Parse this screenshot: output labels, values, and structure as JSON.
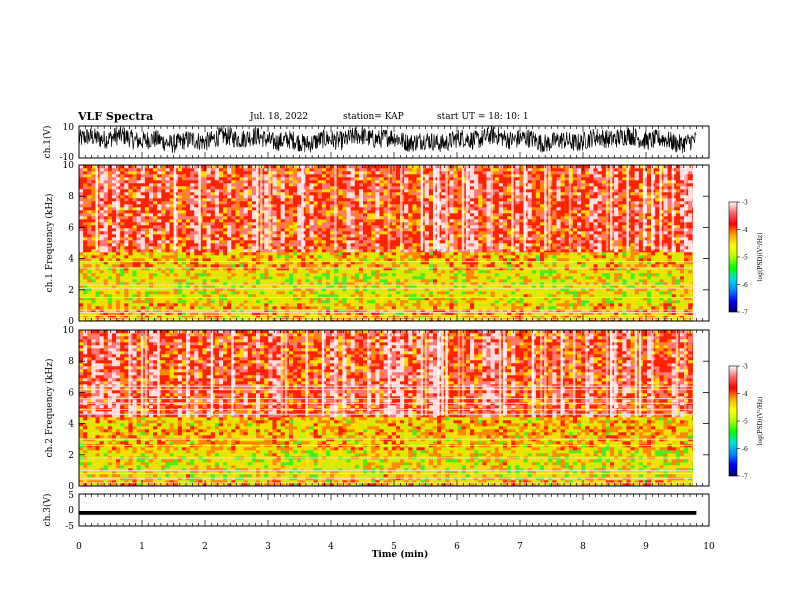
{
  "header": {
    "title": "VLF Spectra",
    "date": "Jul. 18, 2022",
    "station": "station= KAP",
    "start_ut": "start  UT =   18: 10: 1"
  },
  "colors": {
    "colorbar_stops": [
      "#000066",
      "#0000ff",
      "#0088ff",
      "#00dddd",
      "#00ff00",
      "#aaff00",
      "#ffff00",
      "#ffaa00",
      "#ff0000",
      "#ff6666",
      "#ffffff"
    ]
  },
  "chart_data": [
    {
      "type": "line",
      "panel": "ch1-waveform",
      "ylabel": "ch.1(V)",
      "ylim": [
        -10,
        10
      ],
      "yticks": [
        "10",
        "-10"
      ],
      "xlim": [
        0,
        10
      ],
      "note_series": "dense noisy waveform, roughly between -6 and +10 V, spanning 0 to 9.8 min"
    },
    {
      "type": "heatmap",
      "panel": "ch1-spectrogram",
      "ylabel": "ch.1  Frequency  (kHz)",
      "ylim": [
        0,
        10
      ],
      "yticks": [
        "0",
        "2",
        "4",
        "6",
        "8",
        "10"
      ],
      "xlim": [
        0,
        10
      ],
      "data_end_x": 9.8,
      "horizontal_lines_khz": [
        0.1,
        0.2,
        0.35,
        0.55,
        0.7,
        1.5,
        2.1,
        2.3,
        3.4,
        3.8
      ],
      "colorbar": {
        "label": "log(PSD)(V²/Hz)",
        "range": [
          -7,
          -3
        ],
        "ticks": [
          "-3",
          "-4",
          "-5",
          "-6",
          "-7"
        ]
      }
    },
    {
      "type": "heatmap",
      "panel": "ch2-spectrogram",
      "ylabel": "ch.2  Frequency  (kHz)",
      "ylim": [
        0,
        10
      ],
      "yticks": [
        "0",
        "2",
        "4",
        "6",
        "8",
        "10"
      ],
      "xlim": [
        0,
        10
      ],
      "data_end_x": 9.8,
      "horizontal_lines_khz": [
        0.2,
        0.5,
        0.8,
        1.0,
        1.8,
        2.6,
        3.0,
        4.6,
        4.9,
        5.3,
        5.6,
        6.2,
        6.4
      ],
      "colorbar": {
        "label": "log(PSD)(V²/Hz)",
        "range": [
          -7,
          -3
        ],
        "ticks": [
          "-3",
          "-4",
          "-5",
          "-6",
          "-7"
        ]
      }
    },
    {
      "type": "line",
      "panel": "ch3-waveform",
      "ylabel": "ch.3(V)",
      "ylim": [
        -5,
        5
      ],
      "yticks": [
        "5",
        "0",
        "-5"
      ],
      "xlim": [
        0,
        10
      ],
      "xlabel": "Time  (min)",
      "xticks": [
        "0",
        "1",
        "2",
        "3",
        "4",
        "5",
        "6",
        "7",
        "8",
        "9",
        "10"
      ],
      "note_series": "narrow band around -1 V, from 0 to 9.8 min"
    }
  ]
}
